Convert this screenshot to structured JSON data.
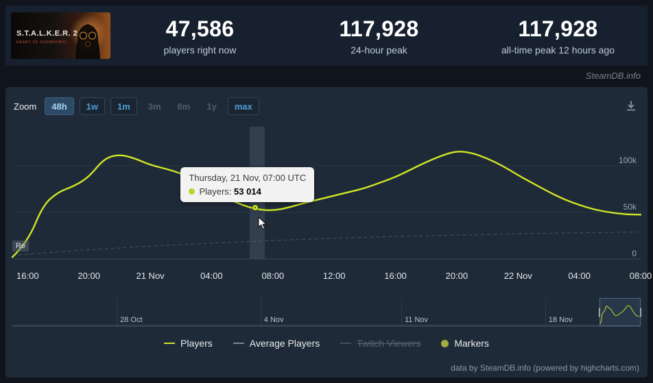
{
  "header": {
    "capsule": {
      "title_line1": "S.T.A.L.K.E.R. 2",
      "title_line2": "HEART OF CHORNOBYL"
    },
    "stats": [
      {
        "value": "47,586",
        "label": "players right now"
      },
      {
        "value": "117,928",
        "label": "24-hour peak"
      },
      {
        "value": "117,928",
        "label": "all-time peak 12 hours ago"
      }
    ]
  },
  "watermark": "SteamDB.info",
  "toolbar": {
    "zoom_label": "Zoom",
    "ranges": [
      {
        "label": "48h",
        "state": "active"
      },
      {
        "label": "1w",
        "state": "enabled"
      },
      {
        "label": "1m",
        "state": "enabled"
      },
      {
        "label": "3m",
        "state": "disabled"
      },
      {
        "label": "6m",
        "state": "disabled"
      },
      {
        "label": "1y",
        "state": "disabled"
      },
      {
        "label": "max",
        "state": "enabled"
      }
    ],
    "download_icon": "download-chart"
  },
  "tooltip": {
    "title": "Thursday, 21 Nov, 07:00 UTC",
    "series_label": "Players:",
    "value": "53 014"
  },
  "release_flag": "Re",
  "chart_data": {
    "type": "line",
    "title": "",
    "xlabel": "",
    "ylabel": "Players",
    "x_unit": "hourly, 20 Nov 15:00 UTC to 22 Nov 08:00 UTC",
    "ylim": [
      0,
      142000
    ],
    "grid": true,
    "legend_position": "bottom",
    "y_ticks": [
      {
        "label": "100k",
        "value": 100000
      },
      {
        "label": "50k",
        "value": 50000
      },
      {
        "label": "0",
        "value": 0
      }
    ],
    "x_ticks": [
      {
        "label": "16:00",
        "index": 1
      },
      {
        "label": "20:00",
        "index": 5
      },
      {
        "label": "21 Nov",
        "index": 9
      },
      {
        "label": "04:00",
        "index": 13
      },
      {
        "label": "08:00",
        "index": 17
      },
      {
        "label": "12:00",
        "index": 21
      },
      {
        "label": "16:00",
        "index": 25
      },
      {
        "label": "20:00",
        "index": 29
      },
      {
        "label": "22 Nov",
        "index": 33
      },
      {
        "label": "04:00",
        "index": 37
      },
      {
        "label": "08:00",
        "index": 41
      }
    ],
    "series": [
      {
        "name": "Players",
        "color": "#cfe625",
        "values": [
          2000,
          18000,
          58000,
          72000,
          78000,
          88000,
          108000,
          112500,
          108000,
          101000,
          97000,
          92000,
          83000,
          74000,
          65000,
          58000,
          53014,
          52000,
          55000,
          60000,
          64000,
          68000,
          72000,
          76000,
          82000,
          88000,
          96000,
          104000,
          111000,
          116000,
          114000,
          108000,
          100000,
          90000,
          81000,
          72000,
          64000,
          58000,
          53000,
          50000,
          48000,
          47586
        ]
      },
      {
        "name": "Average Players",
        "color": "#5e6a77",
        "dashed": true,
        "values": [
          4000,
          9000,
          13000,
          16500,
          19500,
          22000,
          24000,
          25500,
          27000,
          28200,
          29000
        ]
      }
    ],
    "marker": {
      "series": "Players",
      "index": 16,
      "value": 53014
    }
  },
  "navigator": {
    "ticks": [
      {
        "label": "28 Oct",
        "f": 0.166
      },
      {
        "label": "4 Nov",
        "f": 0.395
      },
      {
        "label": "11 Nov",
        "f": 0.619
      },
      {
        "label": "18 Nov",
        "f": 0.848
      }
    ],
    "selection": {
      "start": 0.935,
      "end": 1.0
    }
  },
  "legend": {
    "items": [
      {
        "label": "Players",
        "swatch": "line",
        "color": "#cfe625",
        "state": "active"
      },
      {
        "label": "Average Players",
        "swatch": "line",
        "color": "#7a8694",
        "state": "active"
      },
      {
        "label": "Twitch Viewers",
        "swatch": "line",
        "color": "#444f5a",
        "state": "disabled"
      },
      {
        "label": "Markers",
        "swatch": "dot",
        "color": "#9fae3e",
        "state": "active"
      }
    ]
  },
  "credits": "data by SteamDB.info (powered by highcharts.com)"
}
